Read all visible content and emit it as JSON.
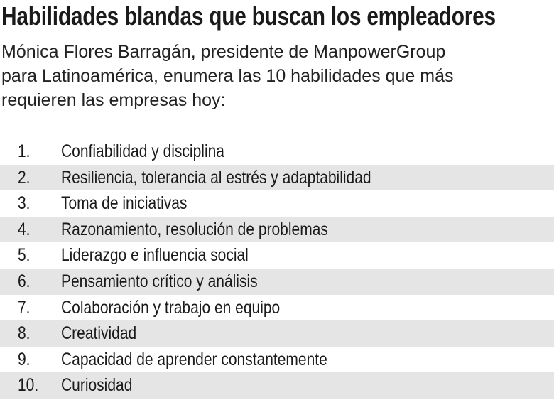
{
  "title": "Habilidades blandas que buscan los empleadores",
  "subtitle_lines": [
    "Mónica Flores Barragán, presidente de ManpowerGroup",
    "para Latinoamérica, enumera las 10 habilidades que más",
    "requieren las empresas hoy:"
  ],
  "items": [
    {
      "number": "1.",
      "text": "Confiabilidad y disciplina"
    },
    {
      "number": "2.",
      "text": "Resiliencia, tolerancia al estrés y adaptabilidad"
    },
    {
      "number": "3.",
      "text": "Toma de iniciativas"
    },
    {
      "number": "4.",
      "text": "Razonamiento, resolución de problemas"
    },
    {
      "number": "5.",
      "text": "Liderazgo e influencia social"
    },
    {
      "number": "6.",
      "text": "Pensamiento crítico y análisis"
    },
    {
      "number": "7.",
      "text": "Colaboración y trabajo en equipo"
    },
    {
      "number": "8.",
      "text": "Creatividad"
    },
    {
      "number": "9.",
      "text": "Capacidad de aprender constantemente"
    },
    {
      "number": "10.",
      "text": "Curiosidad"
    }
  ]
}
